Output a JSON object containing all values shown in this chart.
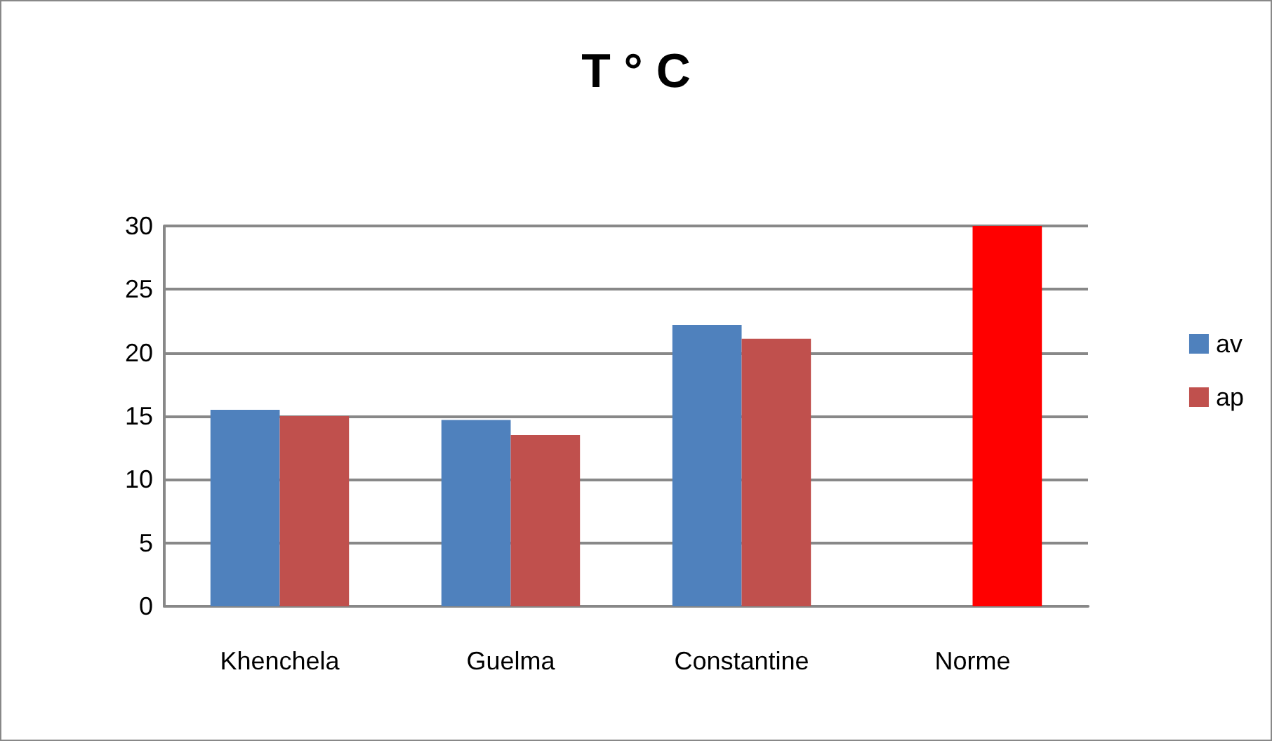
{
  "chart_data": {
    "type": "bar",
    "title": "T ° C",
    "categories": [
      "Khenchela",
      "Guelma",
      "Constantine",
      "Norme"
    ],
    "series": [
      {
        "name": "av",
        "color": "#4f81bd",
        "values": [
          15.5,
          14.7,
          22.2,
          null
        ]
      },
      {
        "name": "ap",
        "color": "#c0504d",
        "colors": [
          "#c0504d",
          "#c0504d",
          "#c0504d",
          "#ff0000"
        ],
        "values": [
          15,
          13.5,
          21.1,
          30
        ]
      }
    ],
    "ylim": [
      0,
      30
    ],
    "yticks": [
      0,
      5,
      10,
      15,
      20,
      25,
      30
    ],
    "grid": "y",
    "legend": "right"
  }
}
